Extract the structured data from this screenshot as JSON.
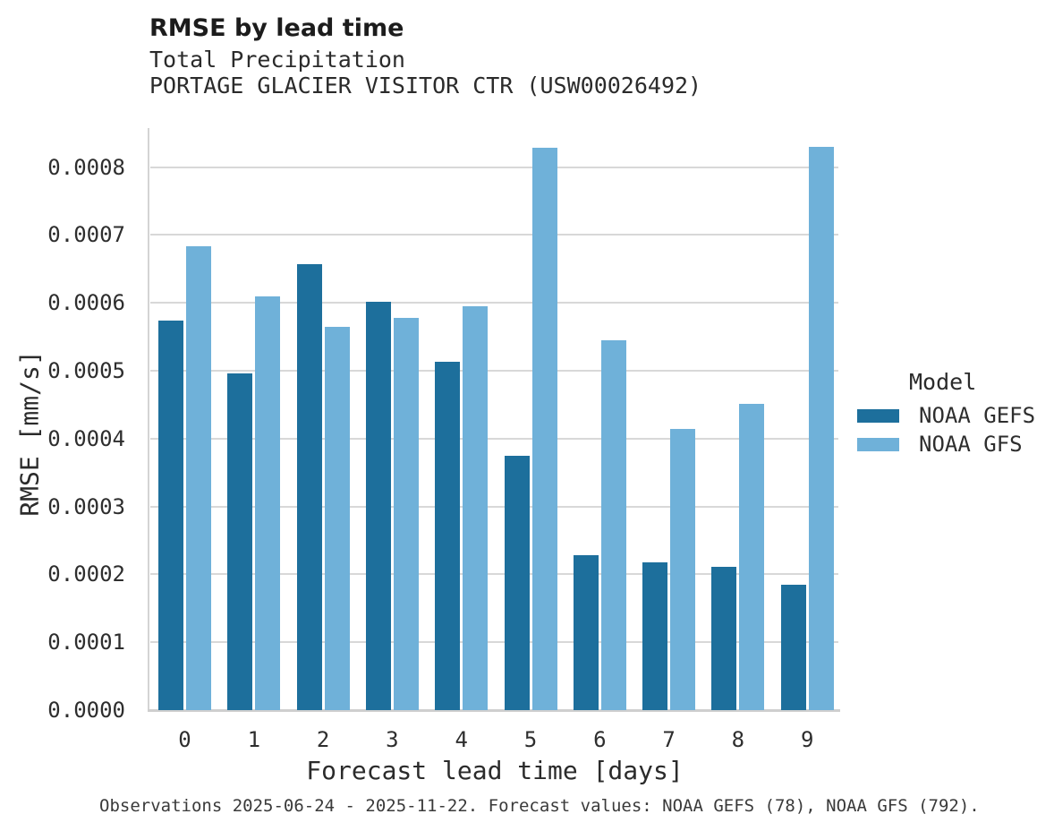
{
  "header": {
    "title": "RMSE by lead time",
    "subtitle_variable": "Total Precipitation",
    "subtitle_station": "PORTAGE GLACIER VISITOR CTR (USW00026492)"
  },
  "chart_data": {
    "type": "bar",
    "title": "RMSE by lead time",
    "subtitle": "Total Precipitation",
    "station": "PORTAGE GLACIER VISITOR CTR (USW00026492)",
    "xlabel": "Forecast lead time [days]",
    "ylabel": "RMSE [mm/s]",
    "categories": [
      "0",
      "1",
      "2",
      "3",
      "4",
      "5",
      "6",
      "7",
      "8",
      "9"
    ],
    "series": [
      {
        "name": "NOAA GEFS",
        "color": "#1d6f9c",
        "values": [
          0.000574,
          0.000496,
          0.000657,
          0.000601,
          0.000513,
          0.000375,
          0.000228,
          0.000218,
          0.000211,
          0.000185
        ]
      },
      {
        "name": "NOAA GFS",
        "color": "#6fb1d9",
        "values": [
          0.000683,
          0.000609,
          0.000565,
          0.000578,
          0.000595,
          0.000829,
          0.000545,
          0.000414,
          0.000451,
          0.00083
        ]
      }
    ],
    "ylim": [
      0.0,
      0.00086
    ],
    "yticks": [
      0.0,
      0.0001,
      0.0002,
      0.0003,
      0.0004,
      0.0005,
      0.0006,
      0.0007,
      0.0008
    ],
    "ytick_labels": [
      "0.0000",
      "0.0001",
      "0.0002",
      "0.0003",
      "0.0004",
      "0.0005",
      "0.0006",
      "0.0007",
      "0.0008"
    ],
    "grid": true,
    "legend_title": "Model",
    "legend_position": "right"
  },
  "legend": {
    "title": "Model",
    "entries": [
      {
        "label": "NOAA GEFS",
        "color": "#1d6f9c"
      },
      {
        "label": "NOAA GFS",
        "color": "#6fb1d9"
      }
    ]
  },
  "caption": "Observations 2025-06-24 - 2025-11-22. Forecast values: NOAA GEFS (78), NOAA GFS (792)."
}
